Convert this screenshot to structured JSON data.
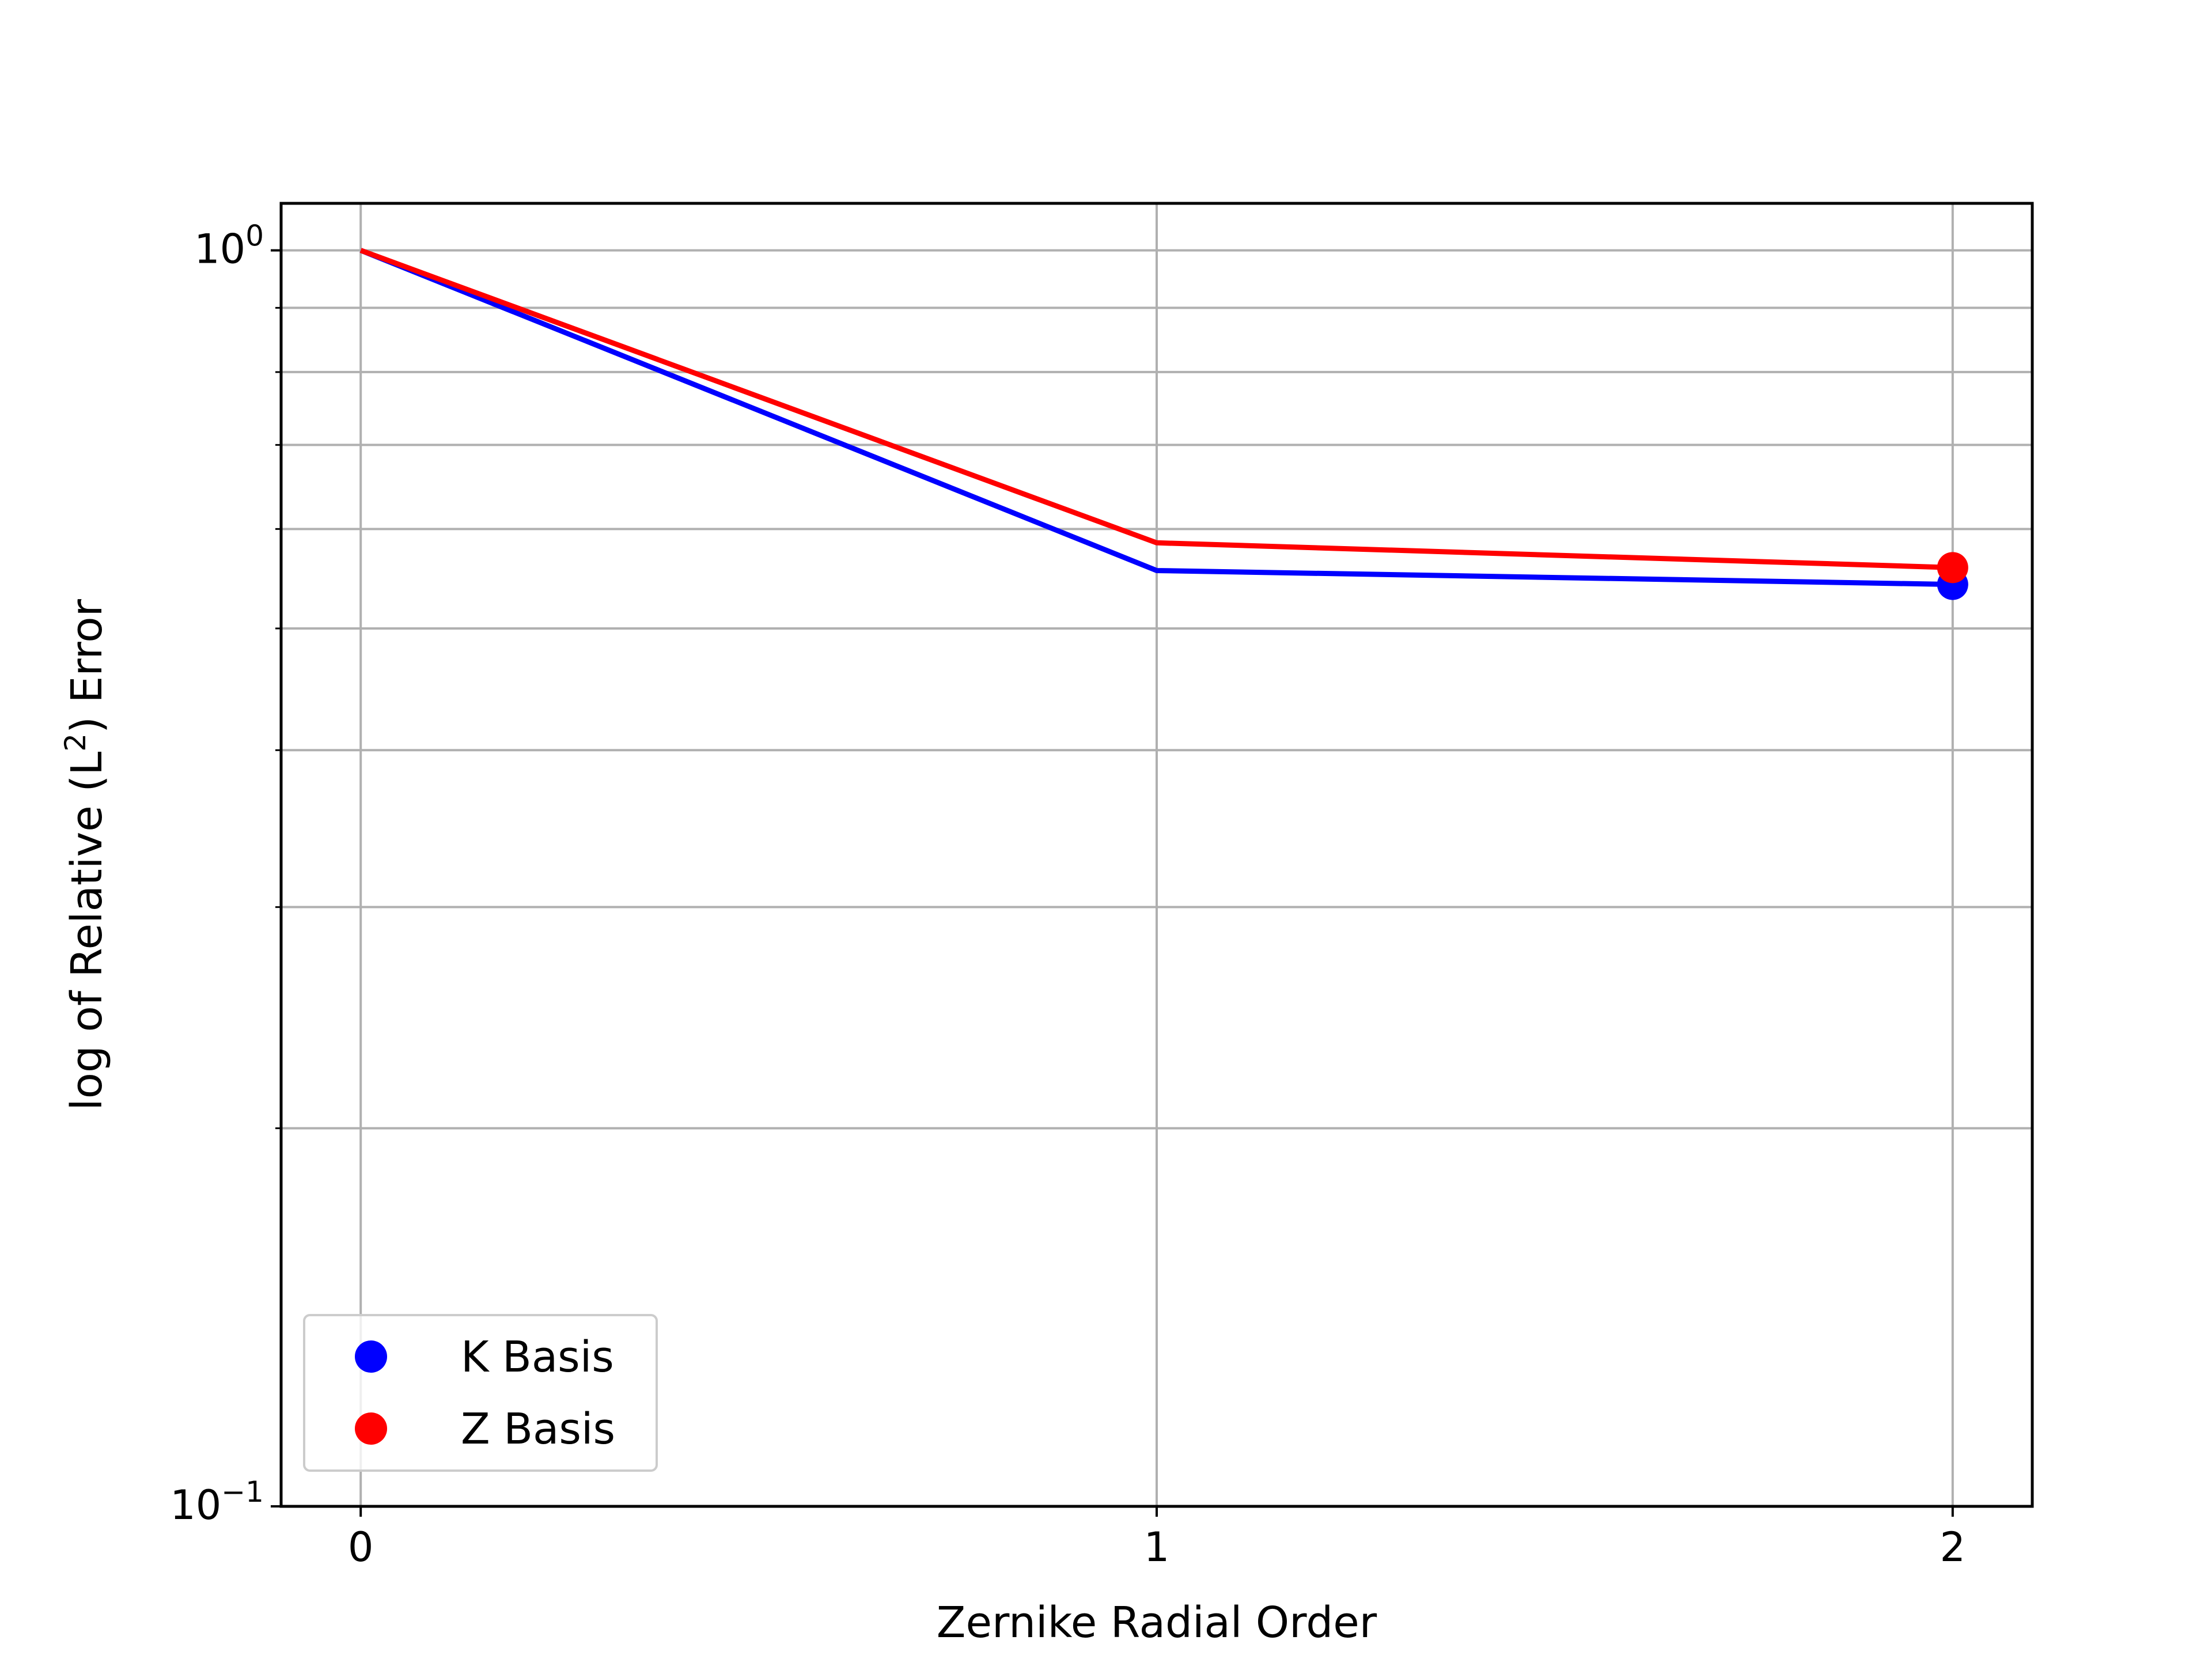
{
  "chart_data": {
    "type": "line",
    "title": "",
    "xlabel": "Zernike Radial Order",
    "ylabel": {
      "pre": "log of Relative (L",
      "sup": "2",
      "post": ") Error"
    },
    "x": [
      0,
      1,
      2
    ],
    "xticks": [
      "0",
      "1",
      "2"
    ],
    "xlim": [
      -0.1,
      2.1
    ],
    "ylim": [
      0.1,
      1.09
    ],
    "yscale": "log",
    "yticks": [
      {
        "value": 1.0,
        "base": "10",
        "exp": "0"
      },
      {
        "value": 0.1,
        "base": "10",
        "exp": "−1"
      }
    ],
    "grid": true,
    "legend_position": "lower left",
    "series": [
      {
        "name": "K Basis",
        "color": "#0000ff",
        "values": [
          1.0,
          0.556,
          0.542
        ],
        "marker_at_last": true
      },
      {
        "name": "Z Basis",
        "color": "#ff0000",
        "values": [
          1.0,
          0.585,
          0.559
        ],
        "marker_at_last": true
      }
    ]
  }
}
